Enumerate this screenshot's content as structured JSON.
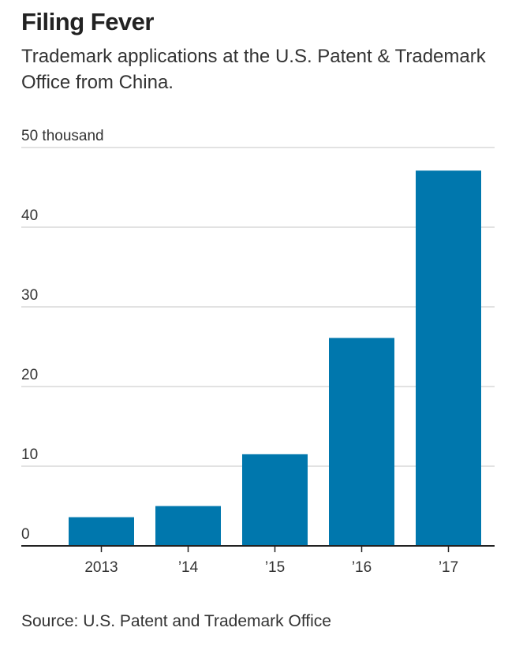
{
  "title": "Filing Fever",
  "subtitle": "Trademark applications at the U.S. Patent & Trademark Office from China.",
  "source": "Source: U.S. Patent and Trademark Office",
  "chart_data": {
    "type": "bar",
    "title": "Filing Fever",
    "xlabel": "",
    "ylabel": "thousand",
    "categories": [
      "2013",
      "’14",
      "’15",
      "’16",
      "’17"
    ],
    "values": [
      3.6,
      5.0,
      11.5,
      26.1,
      47.1
    ],
    "ylim": [
      0,
      50
    ],
    "yticks": [
      0,
      10,
      20,
      30,
      40,
      50
    ],
    "ytick_labels": [
      "0",
      "10",
      "20",
      "30",
      "40",
      "50 thousand"
    ],
    "grid": true,
    "bar_color": "#0077ad"
  }
}
